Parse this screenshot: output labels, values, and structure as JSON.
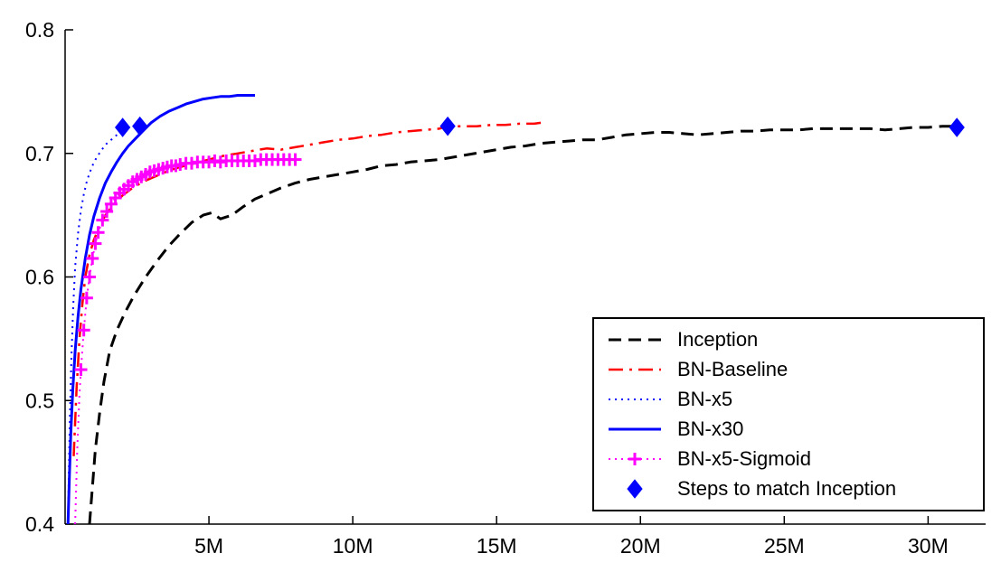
{
  "figure": {
    "background": "#ffffff",
    "axis_color": "#000000"
  },
  "chart_data": {
    "type": "line",
    "title": "",
    "xlabel": "",
    "ylabel": "",
    "grid": false,
    "xlim_millions": [
      0,
      32
    ],
    "ylim": [
      0.4,
      0.8
    ],
    "x_ticks": [
      {
        "value": 5,
        "label": "5M"
      },
      {
        "value": 10,
        "label": "10M"
      },
      {
        "value": 15,
        "label": "15M"
      },
      {
        "value": 20,
        "label": "20M"
      },
      {
        "value": 25,
        "label": "25M"
      },
      {
        "value": 30,
        "label": "30M"
      }
    ],
    "y_ticks": [
      {
        "value": 0.4,
        "label": "0.4"
      },
      {
        "value": 0.5,
        "label": "0.5"
      },
      {
        "value": 0.6,
        "label": "0.6"
      },
      {
        "value": 0.7,
        "label": "0.7"
      },
      {
        "value": 0.8,
        "label": "0.8"
      }
    ],
    "legend": {
      "position": "lower-right",
      "border_color": "#000000"
    },
    "series": [
      {
        "name": "Inception",
        "color": "#000000",
        "style": "dashed",
        "line_width": 3,
        "marker": "none",
        "points_x_millions": [
          [
            0.85,
            0.4
          ],
          [
            0.95,
            0.43
          ],
          [
            1.05,
            0.46
          ],
          [
            1.2,
            0.49
          ],
          [
            1.35,
            0.515
          ],
          [
            1.55,
            0.54
          ],
          [
            1.8,
            0.557
          ],
          [
            2.1,
            0.572
          ],
          [
            2.4,
            0.585
          ],
          [
            2.8,
            0.6
          ],
          [
            3.2,
            0.613
          ],
          [
            3.6,
            0.625
          ],
          [
            4.0,
            0.635
          ],
          [
            4.4,
            0.644
          ],
          [
            4.8,
            0.65
          ],
          [
            5.1,
            0.652
          ],
          [
            5.4,
            0.647
          ],
          [
            5.8,
            0.65
          ],
          [
            6.2,
            0.657
          ],
          [
            6.6,
            0.663
          ],
          [
            7.0,
            0.667
          ],
          [
            7.5,
            0.672
          ],
          [
            8.0,
            0.676
          ],
          [
            8.5,
            0.679
          ],
          [
            9.0,
            0.681
          ],
          [
            9.5,
            0.683
          ],
          [
            10.0,
            0.685
          ],
          [
            10.5,
            0.687
          ],
          [
            11.0,
            0.69
          ],
          [
            11.5,
            0.691
          ],
          [
            12.0,
            0.693
          ],
          [
            12.5,
            0.694
          ],
          [
            13.0,
            0.695
          ],
          [
            13.5,
            0.697
          ],
          [
            14.0,
            0.699
          ],
          [
            14.5,
            0.701
          ],
          [
            15.0,
            0.703
          ],
          [
            15.5,
            0.705
          ],
          [
            16.0,
            0.706
          ],
          [
            16.5,
            0.708
          ],
          [
            17.0,
            0.709
          ],
          [
            17.5,
            0.71
          ],
          [
            18.0,
            0.711
          ],
          [
            18.5,
            0.711
          ],
          [
            19.0,
            0.713
          ],
          [
            19.5,
            0.715
          ],
          [
            20.0,
            0.716
          ],
          [
            20.5,
            0.717
          ],
          [
            21.0,
            0.717
          ],
          [
            21.5,
            0.716
          ],
          [
            22.0,
            0.715
          ],
          [
            22.5,
            0.716
          ],
          [
            23.0,
            0.717
          ],
          [
            23.5,
            0.718
          ],
          [
            24.0,
            0.718
          ],
          [
            24.5,
            0.719
          ],
          [
            25.0,
            0.719
          ],
          [
            25.5,
            0.719
          ],
          [
            26.0,
            0.72
          ],
          [
            26.5,
            0.72
          ],
          [
            27.0,
            0.72
          ],
          [
            27.5,
            0.72
          ],
          [
            28.0,
            0.72
          ],
          [
            28.5,
            0.719
          ],
          [
            29.0,
            0.72
          ],
          [
            29.5,
            0.721
          ],
          [
            30.0,
            0.721
          ],
          [
            30.5,
            0.722
          ],
          [
            31.0,
            0.722
          ]
        ]
      },
      {
        "name": "BN-Baseline",
        "color": "#ff0000",
        "style": "dashdot",
        "line_width": 2.5,
        "marker": "none",
        "points_x_millions": [
          [
            0.3,
            0.455
          ],
          [
            0.4,
            0.51
          ],
          [
            0.5,
            0.55
          ],
          [
            0.6,
            0.578
          ],
          [
            0.7,
            0.6
          ],
          [
            0.85,
            0.618
          ],
          [
            1.0,
            0.63
          ],
          [
            1.2,
            0.641
          ],
          [
            1.4,
            0.65
          ],
          [
            1.7,
            0.659
          ],
          [
            2.0,
            0.666
          ],
          [
            2.4,
            0.673
          ],
          [
            2.8,
            0.678
          ],
          [
            3.2,
            0.682
          ],
          [
            3.6,
            0.686
          ],
          [
            4.0,
            0.689
          ],
          [
            4.5,
            0.692
          ],
          [
            5.0,
            0.695
          ],
          [
            5.5,
            0.698
          ],
          [
            6.0,
            0.7
          ],
          [
            6.5,
            0.702
          ],
          [
            7.0,
            0.704
          ],
          [
            7.5,
            0.703
          ],
          [
            8.0,
            0.705
          ],
          [
            8.5,
            0.707
          ],
          [
            9.0,
            0.709
          ],
          [
            9.5,
            0.711
          ],
          [
            10.0,
            0.712
          ],
          [
            10.5,
            0.714
          ],
          [
            11.0,
            0.715
          ],
          [
            11.5,
            0.717
          ],
          [
            12.0,
            0.718
          ],
          [
            12.5,
            0.719
          ],
          [
            13.0,
            0.72
          ],
          [
            13.3,
            0.722
          ],
          [
            13.8,
            0.722
          ],
          [
            14.3,
            0.722
          ],
          [
            14.8,
            0.723
          ],
          [
            15.3,
            0.723
          ],
          [
            15.8,
            0.724
          ],
          [
            16.3,
            0.724
          ],
          [
            16.6,
            0.725
          ]
        ]
      },
      {
        "name": "BN-x5",
        "color": "#0000ff",
        "style": "dotted",
        "line_width": 2,
        "marker": "none",
        "points_x_millions": [
          [
            0.1,
            0.4
          ],
          [
            0.13,
            0.44
          ],
          [
            0.17,
            0.49
          ],
          [
            0.22,
            0.535
          ],
          [
            0.28,
            0.575
          ],
          [
            0.35,
            0.608
          ],
          [
            0.45,
            0.635
          ],
          [
            0.55,
            0.654
          ],
          [
            0.65,
            0.667
          ],
          [
            0.75,
            0.677
          ],
          [
            0.85,
            0.684
          ],
          [
            0.95,
            0.69
          ],
          [
            1.1,
            0.697
          ],
          [
            1.25,
            0.702
          ],
          [
            1.4,
            0.707
          ],
          [
            1.55,
            0.71
          ],
          [
            1.7,
            0.713
          ],
          [
            1.85,
            0.716
          ],
          [
            2.0,
            0.719
          ],
          [
            2.1,
            0.721
          ]
        ]
      },
      {
        "name": "BN-x30",
        "color": "#0000ff",
        "style": "solid",
        "line_width": 3,
        "marker": "none",
        "points_x_millions": [
          [
            0.1,
            0.4
          ],
          [
            0.15,
            0.44
          ],
          [
            0.2,
            0.475
          ],
          [
            0.27,
            0.51
          ],
          [
            0.35,
            0.54
          ],
          [
            0.45,
            0.568
          ],
          [
            0.55,
            0.59
          ],
          [
            0.7,
            0.615
          ],
          [
            0.85,
            0.634
          ],
          [
            1.0,
            0.649
          ],
          [
            1.2,
            0.664
          ],
          [
            1.4,
            0.676
          ],
          [
            1.6,
            0.685
          ],
          [
            1.8,
            0.693
          ],
          [
            2.0,
            0.7
          ],
          [
            2.2,
            0.706
          ],
          [
            2.45,
            0.712
          ],
          [
            2.7,
            0.718
          ],
          [
            3.0,
            0.725
          ],
          [
            3.3,
            0.73
          ],
          [
            3.6,
            0.734
          ],
          [
            3.9,
            0.737
          ],
          [
            4.2,
            0.74
          ],
          [
            4.5,
            0.742
          ],
          [
            4.8,
            0.744
          ],
          [
            5.1,
            0.745
          ],
          [
            5.4,
            0.746
          ],
          [
            5.7,
            0.746
          ],
          [
            6.0,
            0.747
          ],
          [
            6.3,
            0.747
          ],
          [
            6.6,
            0.747
          ]
        ]
      },
      {
        "name": "BN-x5-Sigmoid",
        "color": "#ff00ff",
        "style": "dotted",
        "line_width": 2,
        "marker": "plus",
        "marker_from": 3,
        "points_x_millions": [
          [
            0.35,
            0.4
          ],
          [
            0.42,
            0.46
          ],
          [
            0.5,
            0.505
          ],
          [
            0.55,
            0.525
          ],
          [
            0.65,
            0.557
          ],
          [
            0.75,
            0.583
          ],
          [
            0.85,
            0.6
          ],
          [
            0.95,
            0.615
          ],
          [
            1.05,
            0.627
          ],
          [
            1.15,
            0.636
          ],
          [
            1.3,
            0.646
          ],
          [
            1.45,
            0.653
          ],
          [
            1.6,
            0.659
          ],
          [
            1.75,
            0.664
          ],
          [
            1.9,
            0.668
          ],
          [
            2.05,
            0.671
          ],
          [
            2.2,
            0.674
          ],
          [
            2.35,
            0.677
          ],
          [
            2.5,
            0.679
          ],
          [
            2.65,
            0.681
          ],
          [
            2.8,
            0.683
          ],
          [
            2.95,
            0.685
          ],
          [
            3.1,
            0.686
          ],
          [
            3.25,
            0.687
          ],
          [
            3.4,
            0.688
          ],
          [
            3.55,
            0.689
          ],
          [
            3.7,
            0.69
          ],
          [
            3.85,
            0.69
          ],
          [
            4.0,
            0.691
          ],
          [
            4.2,
            0.692
          ],
          [
            4.4,
            0.692
          ],
          [
            4.6,
            0.693
          ],
          [
            4.8,
            0.693
          ],
          [
            5.0,
            0.693
          ],
          [
            5.2,
            0.694
          ],
          [
            5.4,
            0.693
          ],
          [
            5.6,
            0.694
          ],
          [
            5.8,
            0.694
          ],
          [
            6.0,
            0.694
          ],
          [
            6.2,
            0.694
          ],
          [
            6.4,
            0.694
          ],
          [
            6.6,
            0.694
          ],
          [
            6.8,
            0.695
          ],
          [
            7.0,
            0.695
          ],
          [
            7.2,
            0.695
          ],
          [
            7.4,
            0.695
          ],
          [
            7.6,
            0.695
          ],
          [
            7.8,
            0.695
          ],
          [
            8.0,
            0.695
          ]
        ]
      },
      {
        "name": "Steps to match Inception",
        "color": "#0000ff",
        "style": "none",
        "line_width": 0,
        "marker": "diamond",
        "points_x_millions": [
          [
            2.0,
            0.721
          ],
          [
            2.6,
            0.722
          ],
          [
            13.3,
            0.722
          ],
          [
            31.0,
            0.721
          ]
        ]
      }
    ]
  }
}
